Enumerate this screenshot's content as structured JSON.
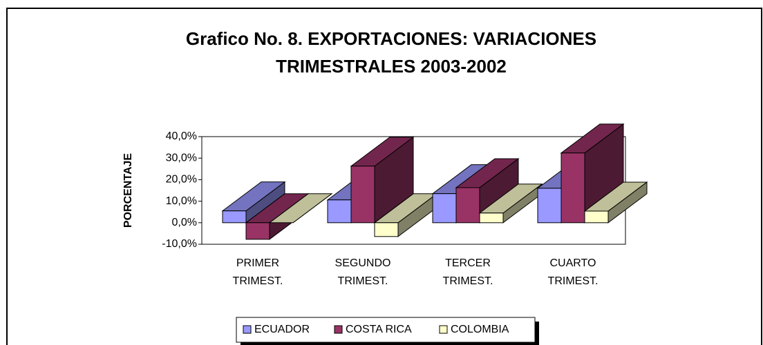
{
  "chart_data": {
    "type": "bar3d",
    "title": [
      "Grafico No. 8. EXPORTACIONES: VARIACIONES",
      "TRIMESTRALES 2003-2002"
    ],
    "y_label": "PORCENTAJE",
    "categories": [
      [
        "PRIMER",
        "TRIMEST."
      ],
      [
        "SEGUNDO",
        "TRIMEST."
      ],
      [
        "TERCER",
        "TRIMEST."
      ],
      [
        "CUARTO",
        "TRIMEST."
      ]
    ],
    "series": [
      {
        "name": "ECUADOR",
        "color": "#9999ff",
        "values": [
          5.5,
          10.6,
          13.5,
          16
        ]
      },
      {
        "name": "COSTA RICA",
        "color": "#993366",
        "values": [
          -7.7,
          26.3,
          16.3,
          32.4
        ]
      },
      {
        "name": "COLOMBIA",
        "color": "#ffffcc",
        "values": [
          0,
          -6.4,
          4.5,
          5.4
        ]
      }
    ],
    "ylim": [
      -10,
      40
    ],
    "yticks": [
      {
        "value": -10,
        "label": "-10,0%"
      },
      {
        "value": 0,
        "label": "0,0%"
      },
      {
        "value": 10,
        "label": "10,0%"
      },
      {
        "value": 20,
        "label": "20,0%"
      },
      {
        "value": 30,
        "label": "30,0%"
      },
      {
        "value": 40,
        "label": "40,0%"
      }
    ]
  }
}
